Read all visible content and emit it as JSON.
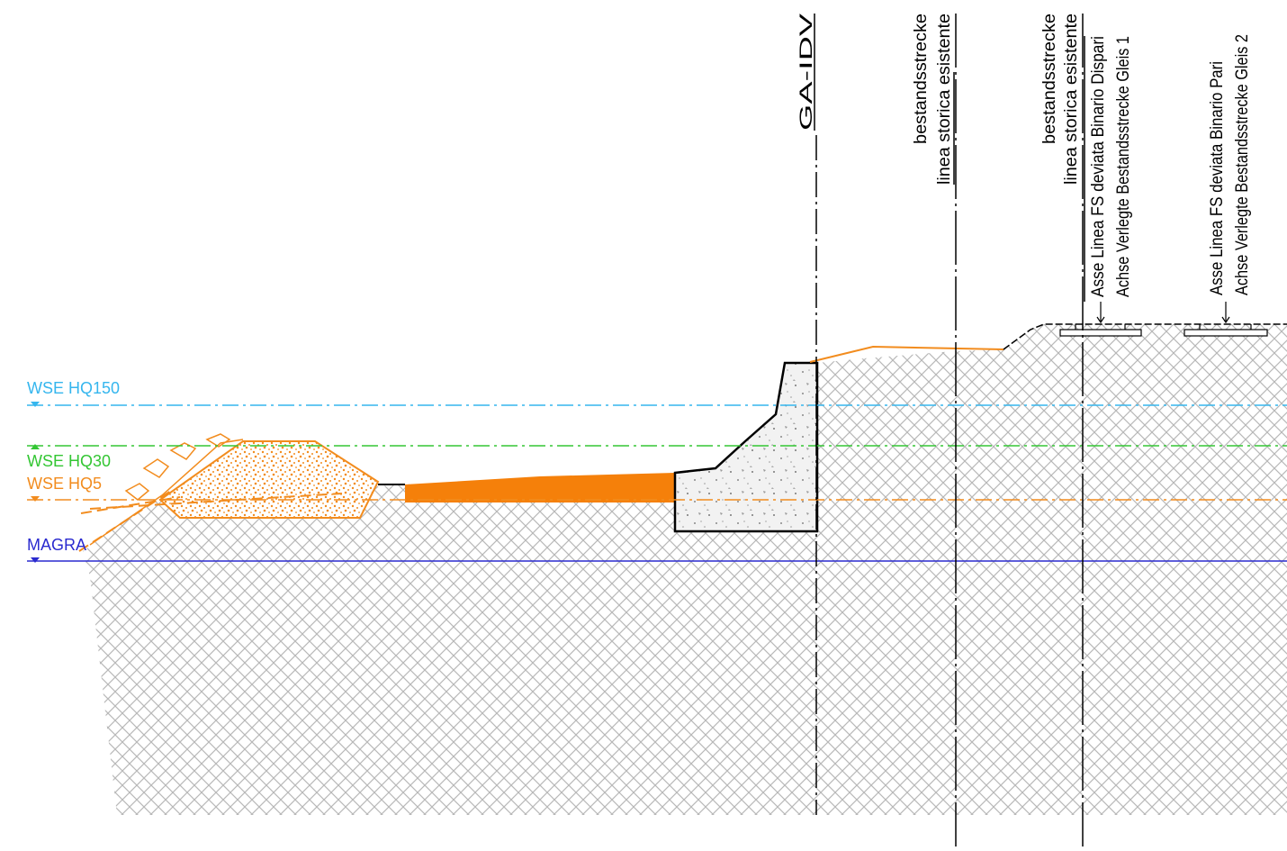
{
  "water_levels": [
    "WSE HQ150",
    "WSE HQ30",
    "WSE HQ5",
    "MAGRA"
  ],
  "axes": {
    "ga_idv": "GA-IDV",
    "existing_left": [
      "bestandsstrecke",
      "linea storica esistente"
    ],
    "existing_right": [
      "bestandsstrecke",
      "linea storica esistente"
    ],
    "track_1": [
      "Asse Linea FS deviata Binario Dispari",
      "Achse Verlegte Bestandsstrecke Gleis 1"
    ],
    "track_2": [
      "Asse Linea FS deviata Binario Pari",
      "Achse Verlegte Bestandsstrecke Gleis 2"
    ]
  }
}
